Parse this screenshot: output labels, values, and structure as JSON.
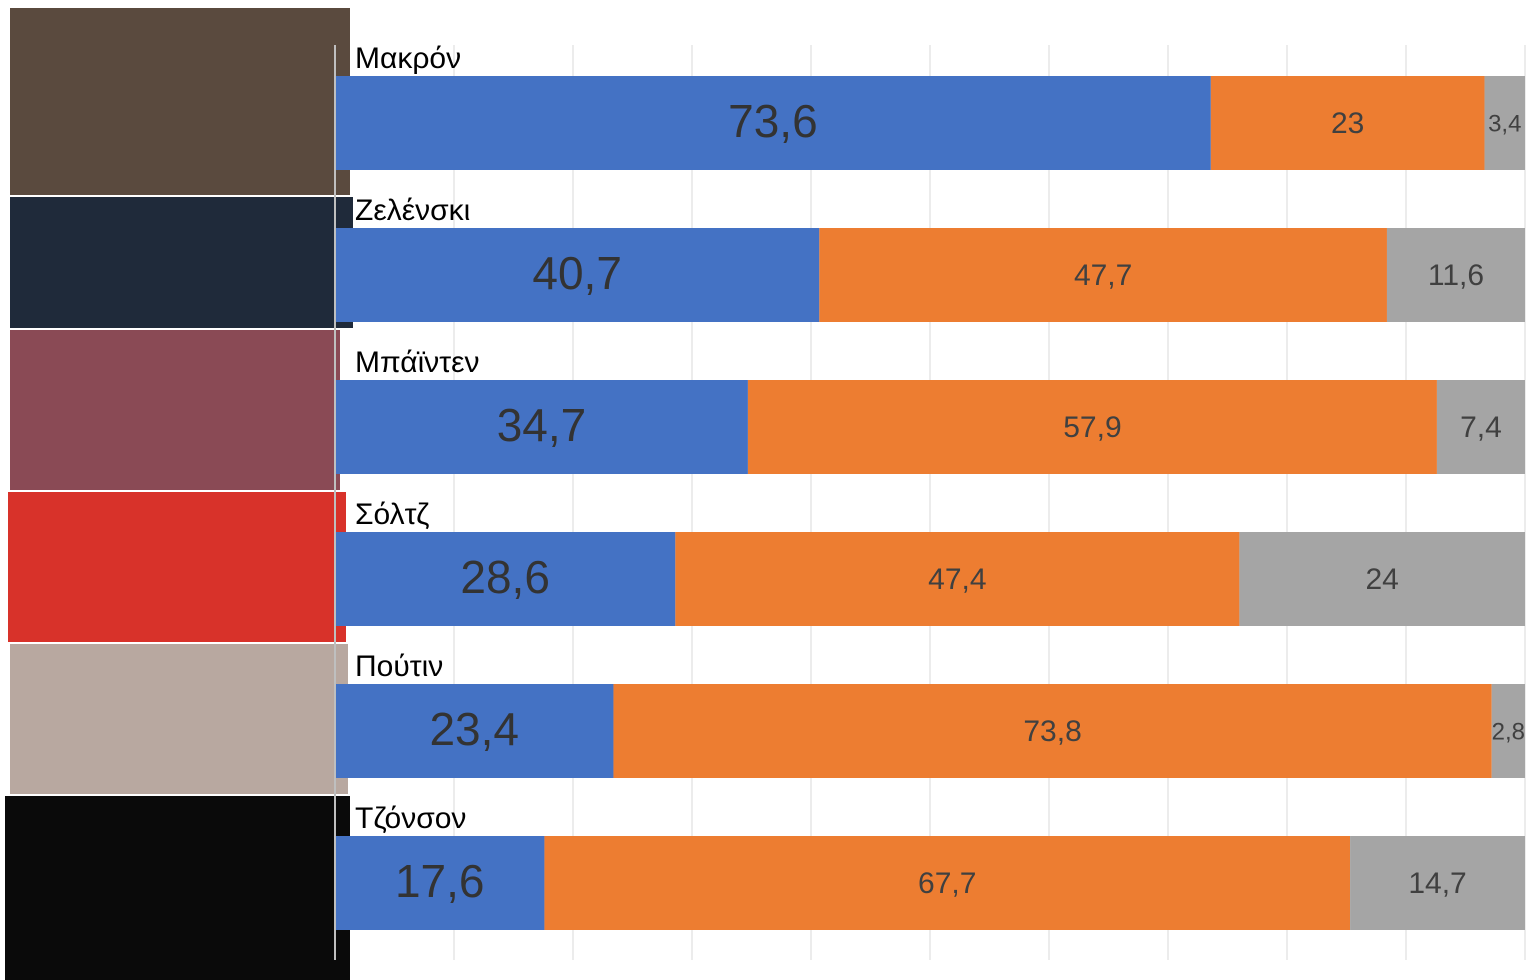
{
  "chart_data": {
    "type": "stacked-barh",
    "categories": [
      "Μακρόν",
      "Ζελένσκι",
      "Μπάϊντεν",
      "Σόλτζ",
      "Πούτιν",
      "Τζόνσον"
    ],
    "series": [
      {
        "color": "#4472c4",
        "values": [
          73.6,
          40.7,
          34.7,
          28.6,
          23.4,
          17.6
        ],
        "value_labels": [
          "73,6",
          "40,7",
          "34,7",
          "28,6",
          "23,4",
          "17,6"
        ]
      },
      {
        "color": "#ed7d31",
        "values": [
          23,
          47.7,
          57.9,
          47.4,
          73.8,
          67.7
        ],
        "value_labels": [
          "23",
          "47,7",
          "57,9",
          "47,4",
          "73,8",
          "67,7"
        ]
      },
      {
        "color": "#a5a5a5",
        "values": [
          3.4,
          11.6,
          7.4,
          24,
          2.8,
          14.7
        ],
        "value_labels": [
          "3,4",
          "11,6",
          "7,4",
          "24",
          "2,8",
          "14,7"
        ]
      }
    ],
    "xlim": [
      0,
      100
    ],
    "xticks": [
      0,
      10,
      20,
      30,
      40,
      50,
      60,
      70,
      80,
      90,
      100
    ],
    "grid": true
  }
}
